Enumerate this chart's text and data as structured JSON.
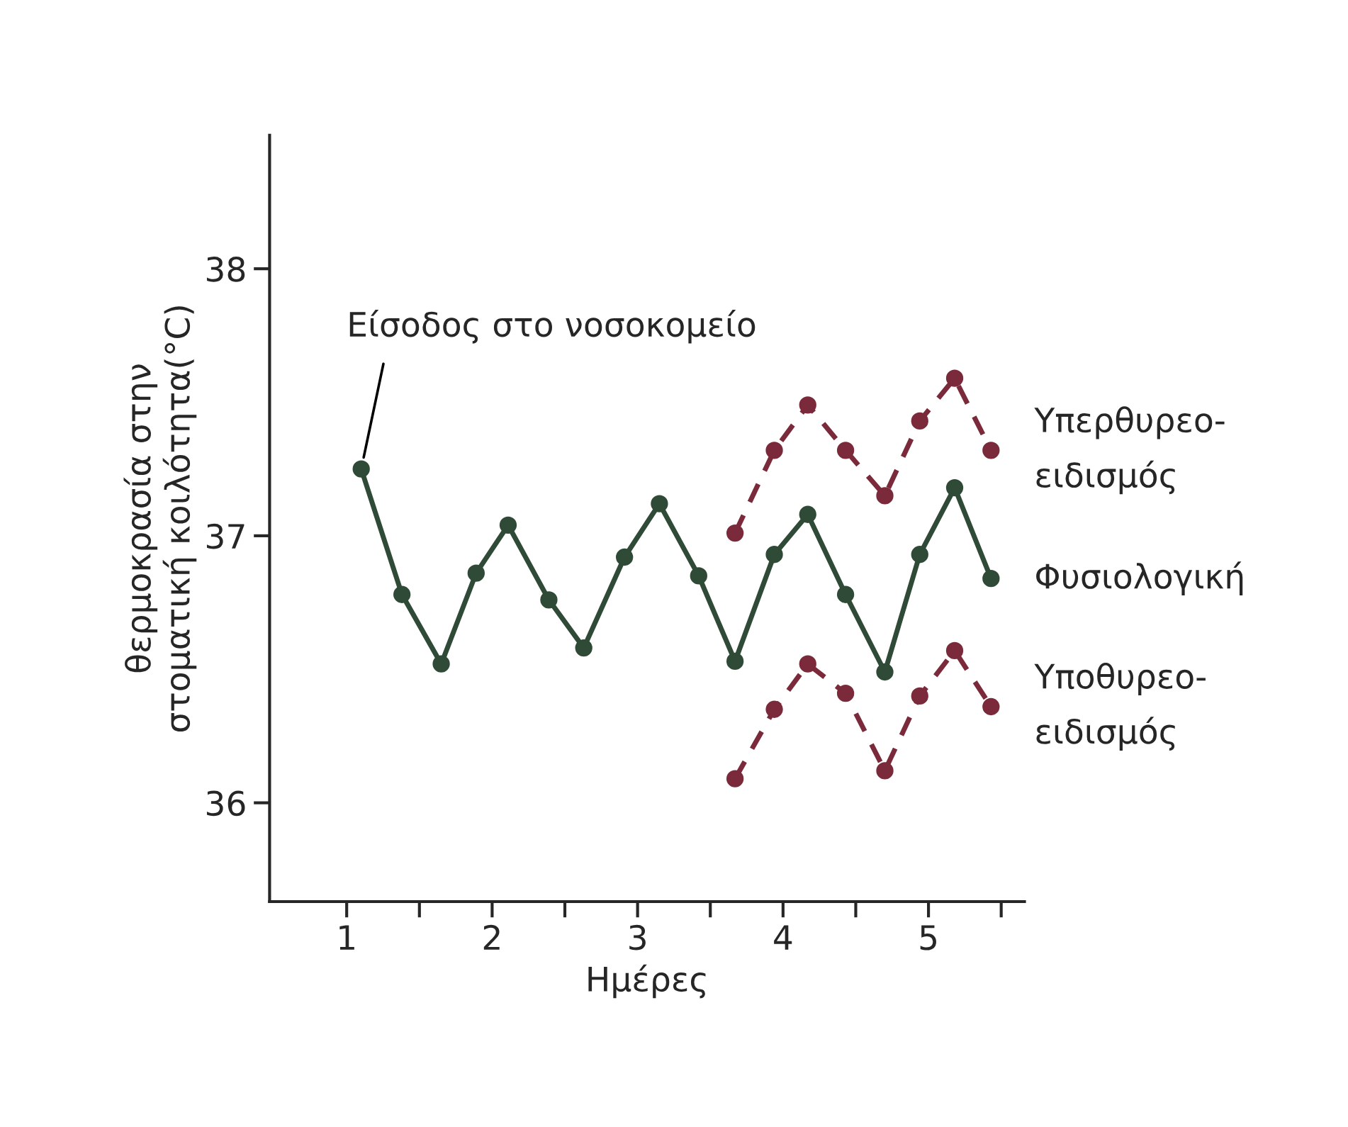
{
  "chart_data": {
    "type": "line",
    "xlabel": "Ημέρες",
    "ylabel": "θερμοκρασία στην\nστοματική κοιλότητα(°C)",
    "xlim": [
      0.47,
      5.66
    ],
    "ylim": [
      35.63,
      38.5
    ],
    "xticks": [
      {
        "value": 1,
        "label": "1"
      },
      {
        "value": 1.5,
        "label": null
      },
      {
        "value": 2,
        "label": "2"
      },
      {
        "value": 2.5,
        "label": null
      },
      {
        "value": 3,
        "label": "3"
      },
      {
        "value": 3.5,
        "label": null
      },
      {
        "value": 4,
        "label": "4"
      },
      {
        "value": 4.5,
        "label": null
      },
      {
        "value": 5,
        "label": "5"
      },
      {
        "value": 5.5,
        "label": null
      }
    ],
    "yticks": [
      36,
      37,
      38
    ],
    "grid": false,
    "legend": false,
    "marker": "circle",
    "annotations": [
      {
        "text": "Είσοδος στο νοσοκομείο",
        "x": 1.1,
        "y": 37.25
      }
    ],
    "series": [
      {
        "name": "Υπερθυρεο-\nειδισμός",
        "color": "#7a2a3a",
        "line_style": "dashed",
        "x": [
          3.67,
          3.94,
          4.17,
          4.43,
          4.7,
          4.94,
          5.18,
          5.43
        ],
        "values": [
          37.01,
          37.32,
          37.49,
          37.32,
          37.15,
          37.43,
          37.59,
          37.32
        ]
      },
      {
        "name": "Φυσιολογική",
        "color": "#2f4a36",
        "line_style": "solid",
        "x": [
          1.1,
          1.38,
          1.65,
          1.89,
          2.11,
          2.39,
          2.63,
          2.91,
          3.15,
          3.42,
          3.67,
          3.94,
          4.17,
          4.43,
          4.7,
          4.94,
          5.18,
          5.43
        ],
        "values": [
          37.25,
          36.78,
          36.52,
          36.86,
          37.04,
          36.76,
          36.58,
          36.92,
          37.12,
          36.85,
          36.53,
          36.93,
          37.08,
          36.78,
          36.49,
          36.93,
          37.18,
          36.84
        ]
      },
      {
        "name": "Υποθυρεο-\nειδισμός",
        "color": "#7a2a3a",
        "line_style": "dashed",
        "x": [
          3.67,
          3.94,
          4.17,
          4.43,
          4.7,
          4.94,
          5.18,
          5.43
        ],
        "values": [
          36.09,
          36.35,
          36.52,
          36.41,
          36.12,
          36.4,
          36.57,
          36.36
        ]
      }
    ]
  }
}
